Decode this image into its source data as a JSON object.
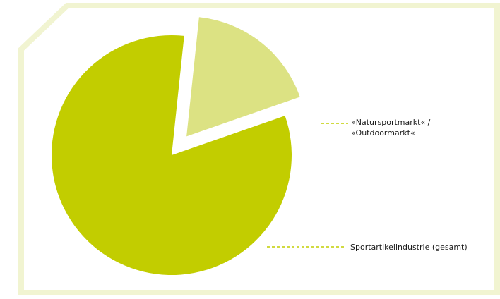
{
  "chart_data": {
    "type": "pie",
    "title": "",
    "categories": [
      "»Natursportmarkt« / »Outdoormarkt«",
      "Sportartikelindustrie (gesamt)"
    ],
    "values": [
      18,
      82
    ],
    "exploded_index": 0,
    "legend_placement": "right",
    "grid": false,
    "labels": [
      {
        "lines": [
          "»Natursportmarkt« /",
          "»Outdoormarkt«"
        ]
      },
      {
        "lines": [
          "Sportartikelindustrie (gesamt)"
        ]
      }
    ]
  },
  "colors": {
    "slice_main": "#c2cd00",
    "slice_exploded": "#dce283",
    "frame": "#f1f4d1",
    "leader": "#c2cd00"
  }
}
